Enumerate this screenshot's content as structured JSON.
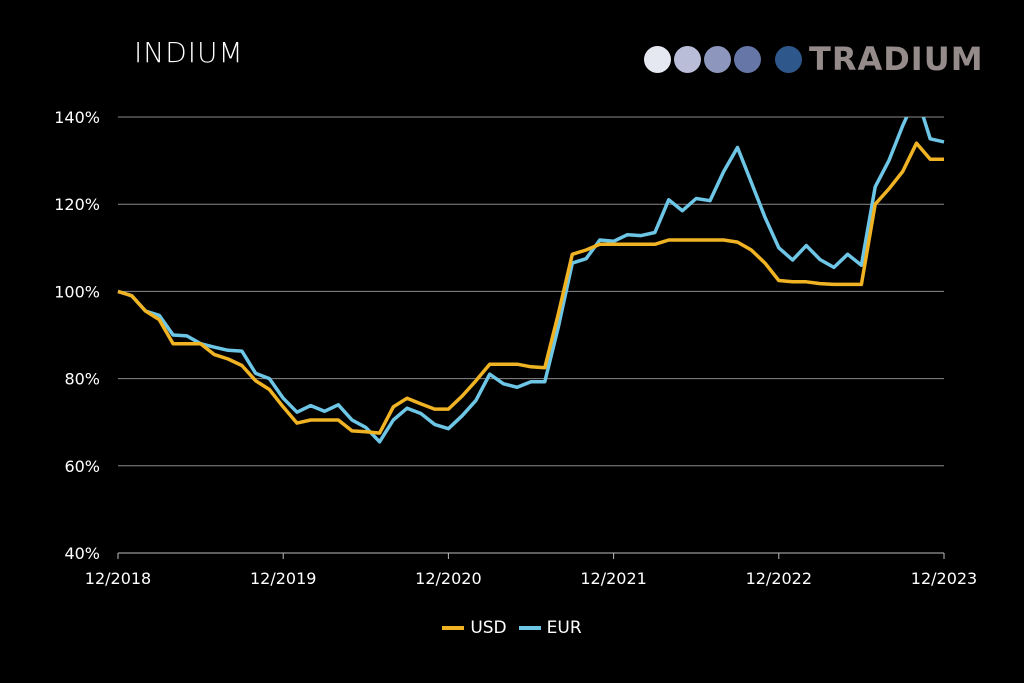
{
  "title": "INDIUM",
  "logo": {
    "text": "TRADIUM",
    "dots": [
      "#e6e8f1",
      "#b9bdd8",
      "#8d96bd",
      "#6676a6",
      "#2e578c"
    ]
  },
  "chart_data": {
    "type": "line",
    "title": "INDIUM",
    "xlabel": "",
    "ylabel": "",
    "x_tick_labels": [
      "12/2018",
      "12/2019",
      "12/2020",
      "12/2021",
      "12/2022",
      "12/2023"
    ],
    "y_tick_labels": [
      "40%",
      "60%",
      "80%",
      "100%",
      "120%",
      "140%"
    ],
    "y_ticks": [
      40,
      60,
      80,
      100,
      120,
      140
    ],
    "ylim": [
      40,
      140
    ],
    "x_months": 60,
    "grid": true,
    "legend": "bottom-center",
    "series": [
      {
        "name": "USD",
        "color": "#f0b323",
        "values": [
          100,
          99,
          95.5,
          93.5,
          88,
          88,
          88,
          85.5,
          84.5,
          83,
          79.5,
          77.5,
          73.5,
          69.8,
          70.5,
          70.5,
          70.5,
          68,
          67.8,
          67.5,
          73.5,
          75.5,
          74.2,
          73,
          73,
          76,
          79.5,
          83.3,
          83.3,
          83.3,
          82.7,
          82.5,
          95,
          108.5,
          109.5,
          110.8,
          110.8,
          110.8,
          110.8,
          110.8,
          111.8,
          111.8,
          111.8,
          111.8,
          111.8,
          111.3,
          109.5,
          106.5,
          102.5,
          102.2,
          102.2,
          101.8,
          101.6,
          101.6,
          101.6,
          120,
          123.5,
          127.5,
          134,
          130.3,
          130.3
        ]
      },
      {
        "name": "EUR",
        "color": "#6ec6e6",
        "values": [
          100,
          99,
          95.5,
          94.5,
          90,
          89.8,
          88,
          87.2,
          86.5,
          86.3,
          81.2,
          80,
          75.5,
          72.3,
          73.8,
          72.5,
          74,
          70.5,
          68.8,
          65.5,
          70.5,
          73.2,
          72,
          69.5,
          68.5,
          71.5,
          75,
          81,
          78.8,
          78,
          79.3,
          79.3,
          92,
          106.5,
          107.5,
          111.8,
          111.5,
          113,
          112.8,
          113.5,
          121,
          118.5,
          121.3,
          120.8,
          127.5,
          133,
          125,
          117,
          110,
          107.2,
          110.5,
          107.3,
          105.5,
          108.5,
          106,
          124,
          130,
          138,
          145,
          135,
          134.3
        ]
      }
    ]
  }
}
